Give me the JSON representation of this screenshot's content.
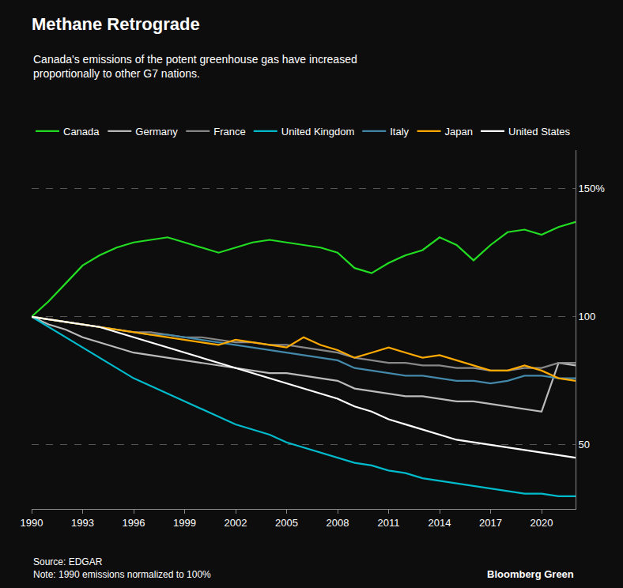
{
  "chart_data": {
    "type": "line",
    "title": "Methane Retrograde",
    "subtitle": "Canada's emissions of the potent greenhouse gas have increased\nproportionally to other G7 nations.",
    "annotations": [
      "Source: EDGAR\nNote: 1990 emissions normalized to 100%",
      "Bloomberg Green"
    ],
    "x": [
      1990,
      1991,
      1992,
      1993,
      1994,
      1995,
      1996,
      1997,
      1998,
      1999,
      2000,
      2001,
      2002,
      2003,
      2004,
      2005,
      2006,
      2007,
      2008,
      2009,
      2010,
      2011,
      2012,
      2013,
      2014,
      2015,
      2016,
      2017,
      2018,
      2019,
      2020,
      2021,
      2022
    ],
    "series": [
      {
        "name": "Canada",
        "color": "#22dd22",
        "values": [
          100,
          106,
          113,
          120,
          124,
          127,
          129,
          130,
          131,
          129,
          127,
          125,
          127,
          129,
          130,
          129,
          128,
          127,
          125,
          119,
          117,
          121,
          124,
          126,
          131,
          128,
          122,
          128,
          133,
          134,
          132,
          135,
          137
        ]
      },
      {
        "name": "Germany",
        "color": "#bbbbbb",
        "values": [
          100,
          97,
          95,
          92,
          90,
          88,
          86,
          85,
          84,
          83,
          82,
          81,
          80,
          79,
          78,
          78,
          77,
          76,
          75,
          72,
          71,
          70,
          69,
          69,
          68,
          67,
          67,
          66,
          65,
          64,
          63,
          82,
          81
        ]
      },
      {
        "name": "France",
        "color": "#888888",
        "values": [
          100,
          99,
          98,
          97,
          96,
          95,
          94,
          94,
          93,
          92,
          92,
          91,
          90,
          90,
          89,
          89,
          88,
          87,
          86,
          84,
          83,
          82,
          82,
          81,
          81,
          80,
          80,
          79,
          79,
          80,
          80,
          82,
          82
        ]
      },
      {
        "name": "United Kingdom",
        "color": "#00bbcc",
        "values": [
          100,
          96,
          92,
          88,
          84,
          80,
          76,
          73,
          70,
          67,
          64,
          61,
          58,
          56,
          54,
          51,
          49,
          47,
          45,
          43,
          42,
          40,
          39,
          37,
          36,
          35,
          34,
          33,
          32,
          31,
          31,
          30,
          30
        ]
      },
      {
        "name": "Italy",
        "color": "#4488aa",
        "values": [
          100,
          99,
          98,
          97,
          96,
          95,
          94,
          93,
          93,
          92,
          91,
          90,
          89,
          88,
          87,
          86,
          85,
          84,
          83,
          80,
          79,
          78,
          77,
          77,
          76,
          75,
          75,
          74,
          75,
          77,
          77,
          76,
          76
        ]
      },
      {
        "name": "Japan",
        "color": "#ffaa00",
        "values": [
          100,
          99,
          98,
          97,
          96,
          95,
          94,
          93,
          92,
          91,
          90,
          89,
          91,
          90,
          89,
          88,
          92,
          89,
          87,
          84,
          86,
          88,
          86,
          84,
          85,
          83,
          81,
          79,
          79,
          81,
          79,
          76,
          75
        ]
      },
      {
        "name": "United States",
        "color": "#ffffff",
        "values": [
          100,
          99,
          98,
          97,
          96,
          94,
          92,
          90,
          88,
          86,
          84,
          82,
          80,
          78,
          76,
          74,
          72,
          70,
          68,
          65,
          63,
          60,
          58,
          56,
          54,
          52,
          51,
          50,
          49,
          48,
          47,
          46,
          45
        ]
      }
    ],
    "xlim": [
      1990,
      2022
    ],
    "xticks": [
      1990,
      1993,
      1996,
      1999,
      2002,
      2005,
      2008,
      2011,
      2014,
      2017,
      2020
    ],
    "ylim": [
      25,
      165
    ],
    "yticks": [
      50,
      100,
      {
        "value": 150,
        "label": "150%"
      }
    ],
    "grid": "y",
    "legend": "top left"
  }
}
